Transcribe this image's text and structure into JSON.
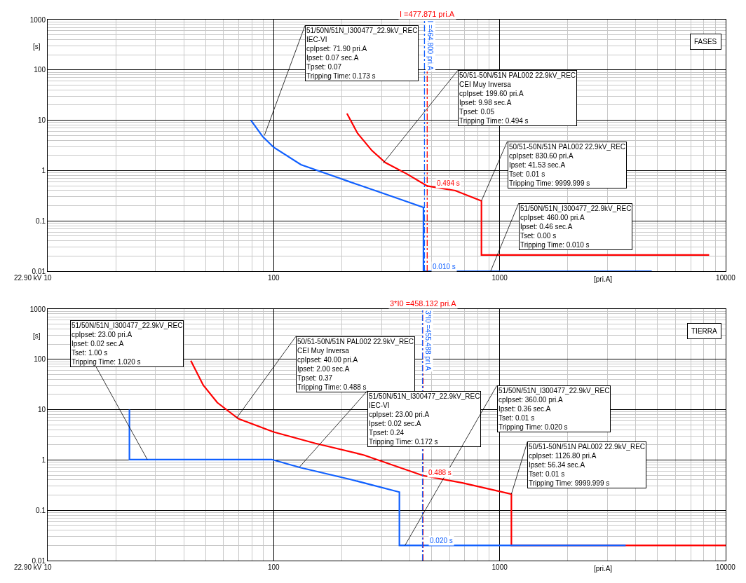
{
  "chart_data": [
    {
      "type": "line",
      "xlabel": "[pri.A]",
      "ylabel": "[s]",
      "log": "xy",
      "grid": true,
      "marker": "none",
      "line_style": "solid",
      "xlim": [
        10,
        10000
      ],
      "xticks": [
        10,
        100,
        1000,
        10000
      ],
      "ylim": [
        0.01,
        1000
      ],
      "yticks": [
        0.01,
        0.1,
        1,
        10,
        100,
        1000
      ],
      "series": [
        {
          "color": "#1060ff",
          "x": [
            79.3,
            89.5,
            100,
            132,
            219,
            312,
            460,
            460,
            4710
          ],
          "values": [
            10,
            4.7,
            2.9,
            1.31,
            0.59,
            0.34,
            0.185,
            0.01,
            0.01
          ]
        },
        {
          "color": "#ff0000",
          "x": [
            211,
            235,
            272,
            312,
            388,
            477.871,
            636,
            830.6,
            830.6,
            8450
          ],
          "values": [
            13.6,
            5.5,
            2.5,
            1.44,
            0.86,
            0.494,
            0.4,
            0.25,
            0.021,
            0.021
          ]
        }
      ],
      "ref_lines": [
        {
          "axis": "x",
          "value": 477.871,
          "label": "I =477.871 pri.A",
          "color": "#ff0000",
          "line_style": "dashed"
        },
        {
          "axis": "x",
          "value": 464.8,
          "label": "I =464.800 pri.A",
          "color": "#1060ff",
          "line_style": "dashed"
        }
      ],
      "annotations": [
        {
          "text": "51/50N/51N_I300477_22.9kV_REC\nIEC-VI\ncpIpset: 71.90 pri.A\nIpset: 0.07 sec.A\nTpset: 0.07\nTripping Time: 0.173 s",
          "x": 91,
          "y": 5
        },
        {
          "text": "50/51-50N/51N PAL002 22.9kV_REC\nCEI Muy Inversa\ncpIpset: 199.60 pri.A\nIpset: 9.98 sec.A\nTpset: 0.05\nTripping Time: 0.494 s",
          "x": 305,
          "y": 1.4
        },
        {
          "text": "50/51-50N/51N PAL002 22.9kV_REC\ncpIpset: 830.60 pri.A\nIpset: 41.53 sec.A\nTset: 0.01 s\nTripping Time: 9999.999 s",
          "x": 830.6,
          "y": 0.25
        },
        {
          "text": "51/50N/51N_I300477_22.9kV_REC\ncpIpset: 460.00 pri.A\nIpset: 0.46 sec.A\nTset: 0.00 s\nTripping Time: 0.010 s",
          "x": 912,
          "y": 0.01
        },
        {
          "text": "0.494 s",
          "x": 477.871,
          "y": 0.494
        },
        {
          "text": "0.010 s",
          "x": 464.8,
          "y": 0.01
        },
        "FASES",
        "22.90 kV"
      ]
    },
    {
      "type": "line",
      "xlabel": "[pri.A]",
      "ylabel": "[s]",
      "log": "xy",
      "grid": true,
      "marker": "none",
      "line_style": "solid",
      "xlim": [
        10,
        10000
      ],
      "xticks": [
        10,
        100,
        1000,
        10000
      ],
      "ylim": [
        0.01,
        1000
      ],
      "yticks": [
        0.01,
        0.1,
        1,
        10,
        100,
        1000
      ],
      "series": [
        {
          "color": "#ff0000",
          "x": [
            43,
            48.8,
            56.3,
            69.8,
            100,
            152,
            251,
            458.132,
            684,
            1126.8,
            1126.8,
            10000
          ],
          "values": [
            94,
            30.6,
            13.8,
            6.6,
            3.6,
            2.15,
            1.25,
            0.488,
            0.35,
            0.21,
            0.02,
            0.02
          ]
        },
        {
          "color": "#1060ff",
          "x": [
            23,
            23,
            98,
            132,
            219,
            360,
            360,
            3610
          ],
          "values": [
            10,
            1.02,
            1.02,
            0.7,
            0.41,
            0.23,
            0.02,
            0.02
          ]
        }
      ],
      "ref_lines": [
        {
          "axis": "x",
          "value": 458.132,
          "label": "3*I0 =458.132 pri.A",
          "color": "#ff0000",
          "line_style": "dashed"
        },
        {
          "axis": "x",
          "value": 455.488,
          "label": "3*I0 =455.488 pri.A",
          "color": "#1060ff",
          "line_style": "dashed"
        }
      ],
      "annotations": [
        {
          "text": "51/50N/51N_I300477_22.9kV_REC\ncpIpset: 23.00 pri.A\nIpset: 0.02 sec.A\nTset: 1.00 s\nTripping Time: 1.020 s",
          "x": 27.6,
          "y": 1.02
        },
        {
          "text": "50/51-50N/51N PAL002 22.9kV_REC\nCEI Muy Inversa\ncpIpset: 40.00 pri.A\nIpset: 2.00 sec.A\nTpset: 0.37\nTripping Time: 0.488 s",
          "x": 68.5,
          "y": 6.8
        },
        {
          "text": "51/50N/51N_I300477_22.9kV_REC\nIEC-VI\ncpIpset: 23.00 pri.A\nIpset: 0.02 sec.A\nTpset: 0.24\nTripping Time: 0.172 s",
          "x": 130,
          "y": 0.72
        },
        {
          "text": "51/50N/51N_I300477_22.9kV_REC\ncpIpset: 360.00 pri.A\nIpset: 0.36 sec.A\nTset: 0.01 s\nTripping Time: 0.020 s",
          "x": 381,
          "y": 0.02
        },
        {
          "text": "50/51-50N/51N PAL002 22.9kV_REC\ncpIpset: 1126.80 pri.A\nIpset: 56.34 sec.A\nTset: 0.01 s\nTripping Time: 9999.999 s",
          "x": 1126.8,
          "y": 0.21
        },
        {
          "text": "0.488 s",
          "x": 458.132,
          "y": 0.488
        },
        {
          "text": "0.020 s",
          "x": 455.488,
          "y": 0.02
        },
        "TIERRA",
        "22.90 kV"
      ]
    }
  ]
}
